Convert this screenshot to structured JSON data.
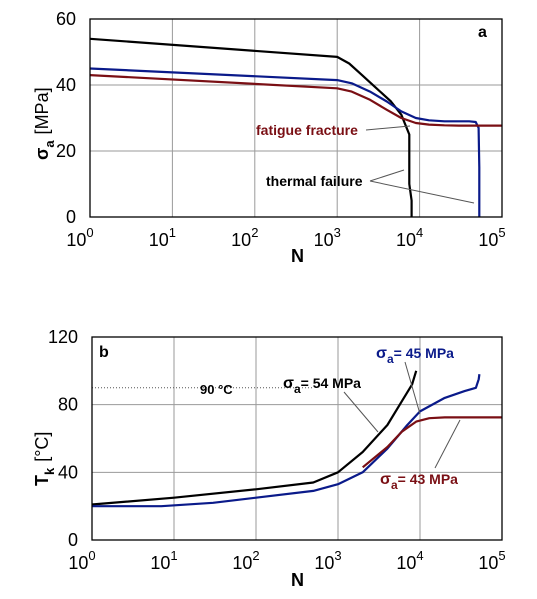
{
  "chart_data": [
    {
      "panel": "a",
      "type": "line",
      "xlabel": "N",
      "ylabel_main": "σ",
      "ylabel_sub": "a",
      "ylabel_unit": "[MPa]",
      "xscale": "log",
      "xlim": [
        1,
        100000
      ],
      "ylim": [
        0,
        60
      ],
      "xticks": [
        {
          "value": 1,
          "base": "10",
          "exp": "0"
        },
        {
          "value": 10,
          "base": "10",
          "exp": "1"
        },
        {
          "value": 100,
          "base": "10",
          "exp": "2"
        },
        {
          "value": 1000,
          "base": "10",
          "exp": "3"
        },
        {
          "value": 10000,
          "base": "10",
          "exp": "4"
        },
        {
          "value": 100000,
          "base": "10",
          "exp": "5"
        }
      ],
      "yticks": [
        0,
        20,
        40,
        60
      ],
      "grid": true,
      "annotations": [
        {
          "text": "fatigue fracture",
          "color": "#7a0f14"
        },
        {
          "text": "thermal failure",
          "color": "#000000"
        }
      ],
      "series": [
        {
          "color": "#000000",
          "x": [
            1,
            1000,
            1400,
            2000,
            3000,
            4500,
            6000,
            7500,
            7500,
            8000,
            8000
          ],
          "y": [
            54,
            48.5,
            46.5,
            43,
            39,
            35,
            31,
            25,
            10,
            5,
            0
          ]
        },
        {
          "color": "#0a1a8a",
          "x": [
            1,
            1000,
            1500,
            2500,
            4000,
            6000,
            9000,
            13000,
            20000,
            30000,
            40000,
            48000,
            52000,
            53000,
            53000
          ],
          "y": [
            45,
            41.5,
            40.5,
            38,
            35,
            32,
            30,
            29.3,
            29,
            29,
            29,
            28.8,
            27,
            15,
            0
          ]
        },
        {
          "color": "#7a0f14",
          "x": [
            1,
            1000,
            1500,
            2500,
            4000,
            6000,
            9000,
            13000,
            20000,
            30000,
            100000
          ],
          "y": [
            43,
            39,
            38,
            35.5,
            32.5,
            30,
            28.5,
            28,
            27.8,
            27.7,
            27.7
          ]
        }
      ]
    },
    {
      "panel": "b",
      "type": "line",
      "xlabel": "N",
      "ylabel_main": "T",
      "ylabel_sub": "k",
      "ylabel_unit": "[°C]",
      "xscale": "log",
      "xlim": [
        1,
        100000
      ],
      "ylim": [
        0,
        120
      ],
      "xticks": [
        {
          "value": 1,
          "base": "10",
          "exp": "0"
        },
        {
          "value": 10,
          "base": "10",
          "exp": "1"
        },
        {
          "value": 100,
          "base": "10",
          "exp": "2"
        },
        {
          "value": 1000,
          "base": "10",
          "exp": "3"
        },
        {
          "value": 10000,
          "base": "10",
          "exp": "4"
        },
        {
          "value": 100000,
          "base": "10",
          "exp": "5"
        }
      ],
      "yticks": [
        0,
        40,
        80,
        120
      ],
      "grid": true,
      "reference_line": {
        "y": 90,
        "label": "90 °C"
      },
      "annotations": [
        {
          "main": "σ",
          "sub": "a",
          "rest": "= 54 MPa",
          "color": "#000000"
        },
        {
          "main": "σ",
          "sub": "a",
          "rest": "= 45 MPa",
          "color": "#0a1a8a"
        },
        {
          "main": "σ",
          "sub": "a",
          "rest": "= 43 MPa",
          "color": "#7a0f14"
        }
      ],
      "series": [
        {
          "name": "σa = 54 MPa",
          "color": "#000000",
          "x": [
            1,
            10,
            100,
            500,
            1000,
            2000,
            4000,
            6000,
            8000,
            9000
          ],
          "y": [
            21,
            25,
            30,
            34,
            40,
            52,
            68,
            82,
            92,
            100
          ]
        },
        {
          "name": "σa = 45 MPa",
          "color": "#0a1a8a",
          "x": [
            1,
            7,
            30,
            100,
            500,
            1000,
            2000,
            4000,
            7000,
            10000,
            20000,
            35000,
            48000,
            52000,
            53000
          ],
          "y": [
            20,
            20,
            22,
            25,
            29,
            33,
            40,
            54,
            68,
            76,
            84,
            88,
            90,
            95,
            98
          ]
        },
        {
          "name": "σa = 43 MPa",
          "color": "#7a0f14",
          "x": [
            2000,
            4000,
            6000,
            9000,
            13000,
            20000,
            40000,
            100000
          ],
          "y": [
            43,
            55,
            64,
            70,
            72,
            72.5,
            72.5,
            72.5
          ]
        }
      ]
    }
  ]
}
